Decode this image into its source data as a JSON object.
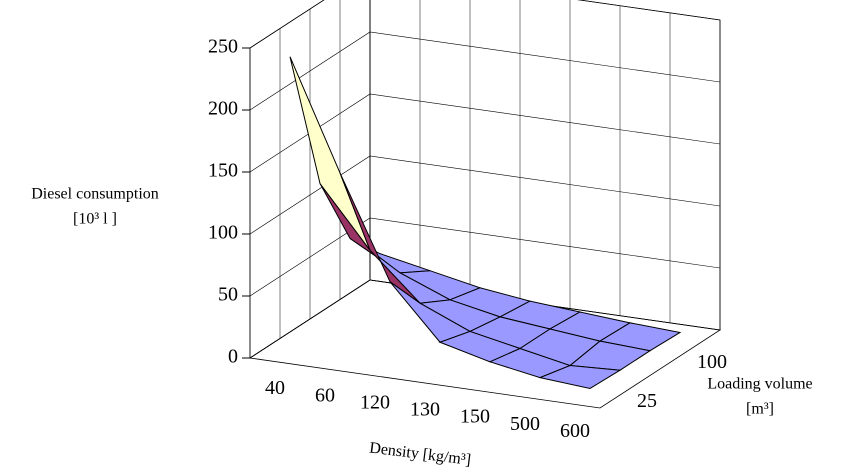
{
  "chart_data": {
    "type": "surface",
    "y_label_lines": [
      "Diesel consumption",
      "[10³ l ]"
    ],
    "x_label": "Density [kg/m³]",
    "depth_label_lines": [
      "Loading volume",
      "[m³]"
    ],
    "categories": [
      "40",
      "60",
      "120",
      "130",
      "150",
      "500",
      "600"
    ],
    "depth_categories": [
      "25",
      null,
      "100",
      null
    ],
    "series": [
      {
        "values": [
          238,
          150,
          68,
          25,
          15,
          8,
          5
        ]
      },
      {
        "values": [
          120,
          72,
          35,
          18,
          10,
          2,
          4
        ]
      },
      {
        "values": [
          60,
          38,
          22,
          14,
          10,
          6,
          4
        ]
      },
      {
        "values": [
          32,
          24,
          16,
          11,
          8,
          5,
          3
        ]
      }
    ],
    "ylim": [
      0,
      250
    ],
    "yticks": [
      0,
      50,
      100,
      150,
      200,
      250
    ],
    "band_colors": [
      "#9999ff",
      "#993366",
      "#ffffcc",
      "#ccffff",
      "#660066"
    ],
    "grid": true
  }
}
